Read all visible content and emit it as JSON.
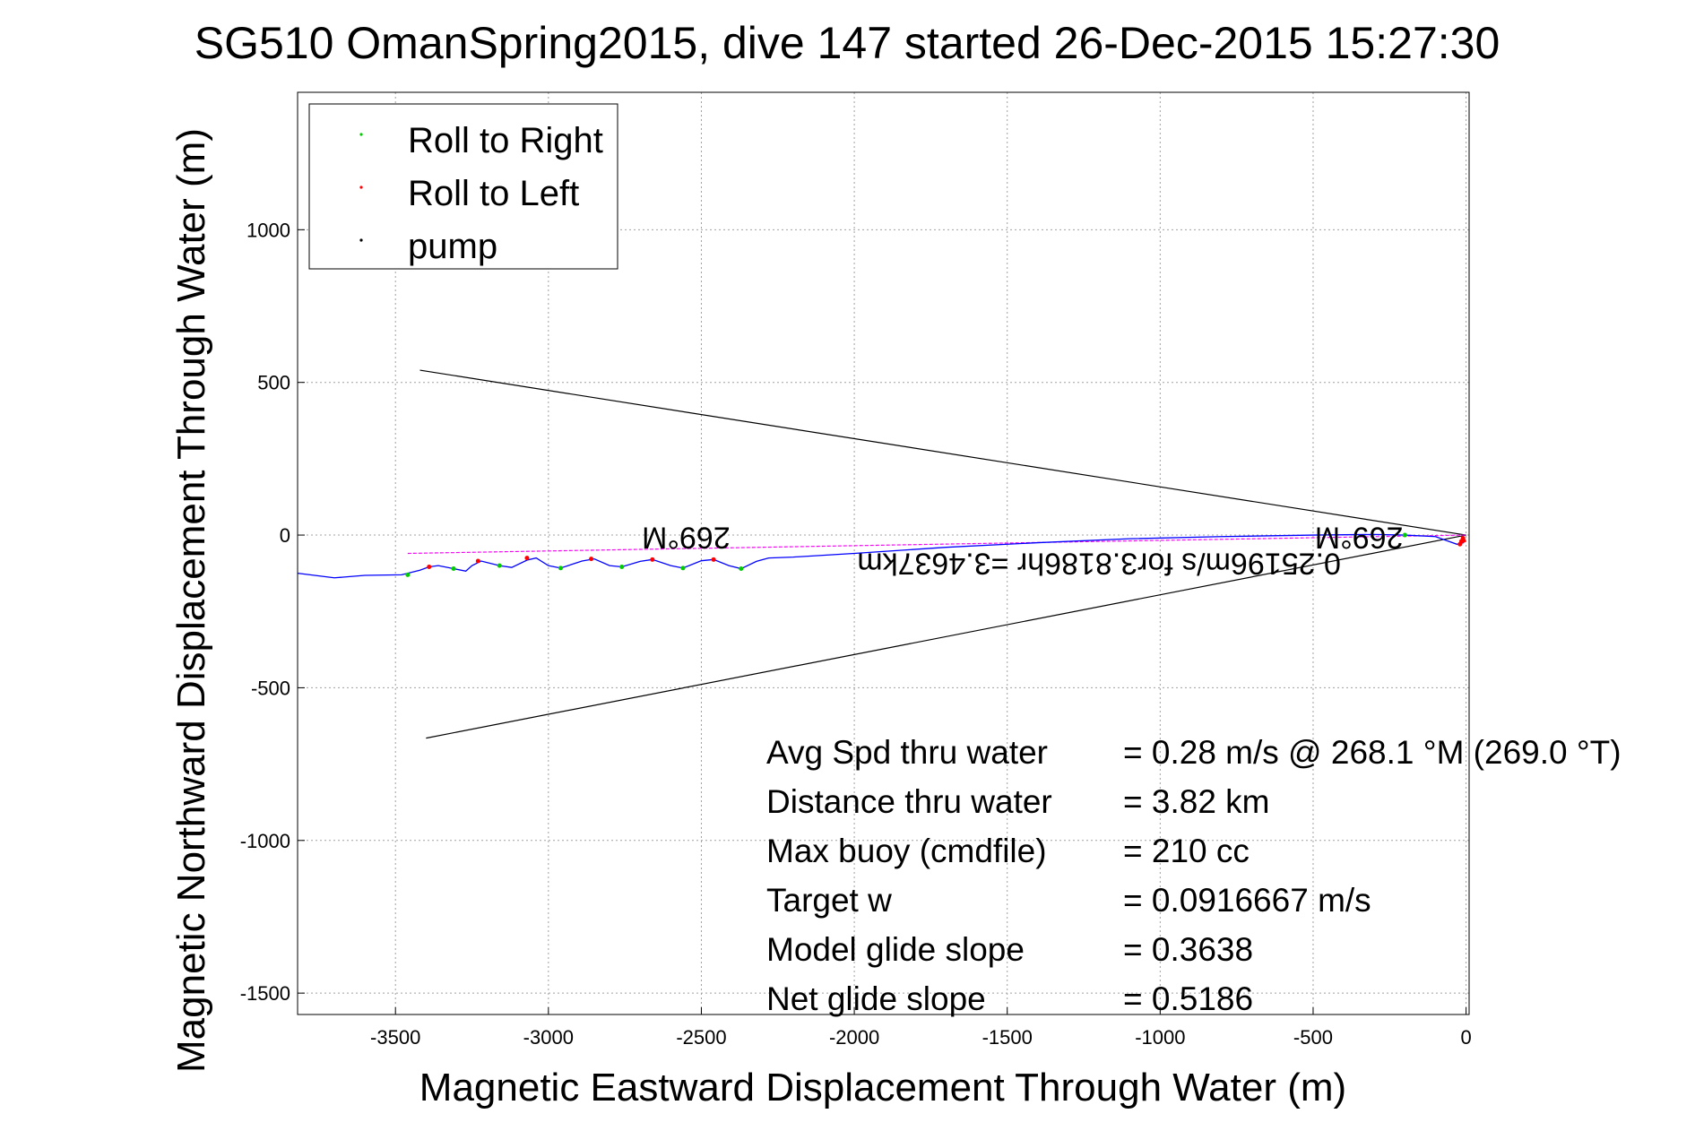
{
  "chart_data": {
    "type": "line",
    "title": "SG510 OmanSpring2015, dive 147 started 26-Dec-2015 15:27:30",
    "xlabel": "Magnetic Eastward Displacement Through Water (m)",
    "ylabel": "Magnetic Northward Displacement Through Water (m)",
    "xlim": [
      -3820,
      10
    ],
    "ylim": [
      -1570,
      1450
    ],
    "xticks": [
      -3500,
      -3000,
      -2500,
      -2000,
      -1500,
      -1000,
      -500,
      0
    ],
    "yticks": [
      1000,
      500,
      0,
      -500,
      -1000,
      -1500
    ],
    "grid": true,
    "legend": {
      "placement": "top-left",
      "entries": [
        {
          "label": "Roll to Right",
          "color": "#00cc00"
        },
        {
          "label": "Roll to Left",
          "color": "#ff0000"
        },
        {
          "label": "pump",
          "color": "#000000"
        }
      ]
    },
    "colors": {
      "track": "#0000ff",
      "avg_line": "#ff00ff",
      "cone": "#000000"
    },
    "series": [
      {
        "values_x": [
          -3820,
          -3700,
          -3600,
          -3480,
          -3420,
          -3390,
          -3360,
          -3310,
          -3270,
          -3250,
          -3220,
          -3160,
          -3120,
          -3070,
          -3040,
          -3000,
          -2960,
          -2890,
          -2850,
          -2800,
          -2760,
          -2700,
          -2660,
          -2600,
          -2560,
          -2500,
          -2460,
          -2410,
          -2370,
          -2320,
          -2280,
          -2200,
          -2000,
          -1700,
          -1400,
          -1100,
          -800,
          -500,
          -300,
          -200,
          -100,
          -30,
          -8
        ],
        "values_y": [
          -125,
          -140,
          -132,
          -130,
          -115,
          -104,
          -100,
          -110,
          -118,
          -100,
          -85,
          -100,
          -106,
          -82,
          -75,
          -100,
          -108,
          -85,
          -78,
          -100,
          -104,
          -86,
          -80,
          -100,
          -108,
          -84,
          -80,
          -100,
          -110,
          -86,
          -75,
          -72,
          -60,
          -40,
          -25,
          -12,
          -5,
          0,
          2,
          0,
          -5,
          -30,
          -25
        ]
      }
    ],
    "right_roll_points": {
      "x": [
        -3460,
        -3310,
        -3160,
        -2960,
        -2760,
        -2560,
        -2370,
        -200
      ],
      "y": [
        -130,
        -110,
        -100,
        -108,
        -104,
        -108,
        -110,
        0
      ]
    },
    "left_roll_points": {
      "x": [
        -3390,
        -3230,
        -3070,
        -2860,
        -2660,
        -2460,
        -10,
        -15,
        -20,
        -8
      ],
      "y": [
        -104,
        -85,
        -75,
        -78,
        -80,
        -80,
        -10,
        -20,
        -30,
        -18
      ]
    },
    "avg_line": {
      "x": [
        -3460,
        0
      ],
      "y": [
        -60,
        0
      ]
    },
    "cone_lines": [
      {
        "x": [
          -3420,
          0
        ],
        "y": [
          540,
          0
        ]
      },
      {
        "x": [
          -3400,
          0
        ],
        "y": [
          -665,
          0
        ]
      }
    ],
    "annotations": [
      {
        "text": "269°M",
        "x": -2550,
        "y": 25,
        "rotated_180": true
      },
      {
        "text": "269°M",
        "x": -350,
        "y": 25,
        "rotated_180": true
      },
      {
        "text": "0.25196m/s for3.8186hr =3.4637km",
        "x": -1200,
        "y": -60,
        "rotated_180": true
      }
    ],
    "info_lines": [
      {
        "label": "Avg Spd thru water",
        "value": "=  0.28 m/s @ 268.1 °M (269.0 °T)"
      },
      {
        "label": "Distance thru water",
        "value": "=  3.82 km"
      },
      {
        "label": "Max buoy (cmdfile)",
        "value": "= 210 cc"
      },
      {
        "label": "Target w",
        "value": "= 0.0916667 m/s"
      },
      {
        "label": "Model glide slope",
        "value": "= 0.3638"
      },
      {
        "label": "Net glide slope",
        "value": "= 0.5186"
      }
    ]
  }
}
